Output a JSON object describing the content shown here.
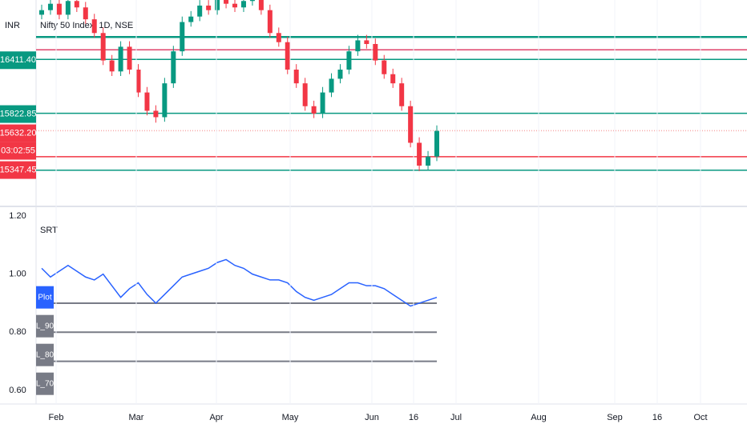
{
  "chart_data": [
    {
      "type": "candlestick",
      "title": "Nifty 50 Index, 1D, NSE",
      "unit": "INR",
      "up_color": "#089981",
      "down_color": "#f23645",
      "open": [
        16900,
        16950,
        17020,
        16900,
        17050,
        16980,
        16850,
        16700,
        16400,
        16280,
        16550,
        16300,
        16050,
        15850,
        15780,
        16150,
        16500,
        16820,
        16880,
        17000,
        16950,
        17080,
        17020,
        16980,
        17050,
        17100,
        16950,
        16700,
        16600,
        16300,
        16150,
        15900,
        15820,
        16050,
        16200,
        16300,
        16500,
        16620,
        16580,
        16400,
        16250,
        16150,
        15900,
        15500,
        15250,
        15350
      ],
      "high": [
        17010,
        17080,
        17080,
        17110,
        17110,
        17040,
        16910,
        16760,
        16460,
        16610,
        16610,
        16360,
        16110,
        15910,
        16210,
        16560,
        16880,
        16940,
        17060,
        17060,
        17140,
        17140,
        17080,
        17110,
        17160,
        17160,
        17010,
        16760,
        16660,
        16360,
        16210,
        15960,
        16110,
        16260,
        16360,
        16560,
        16680,
        16680,
        16640,
        16460,
        16310,
        16210,
        15960,
        15560,
        15410,
        15690
      ],
      "low": [
        16850,
        16900,
        16850,
        16850,
        16930,
        16800,
        16650,
        16350,
        16230,
        16230,
        16250,
        16000,
        15800,
        15720,
        15730,
        16100,
        16450,
        16770,
        16830,
        16900,
        16900,
        16970,
        16930,
        16930,
        17000,
        16900,
        16650,
        16550,
        16250,
        16100,
        15850,
        15770,
        15770,
        16000,
        16150,
        16250,
        16450,
        16530,
        16350,
        16200,
        16100,
        15850,
        15450,
        15190,
        15200,
        15300
      ],
      "close": [
        16950,
        17020,
        16900,
        17050,
        16980,
        16850,
        16700,
        16400,
        16280,
        16550,
        16300,
        16050,
        15850,
        15780,
        16150,
        16500,
        16820,
        16880,
        17000,
        16950,
        17080,
        17020,
        16980,
        17050,
        17100,
        16950,
        16700,
        16600,
        16300,
        16150,
        15900,
        15820,
        16050,
        16200,
        16300,
        16500,
        16620,
        16580,
        16400,
        16250,
        16150,
        15900,
        15500,
        15250,
        15350,
        15630
      ],
      "ylim": [
        14822,
        17061
      ],
      "levels": [
        {
          "value": 16657,
          "color": "#089981"
        },
        {
          "value": 16517,
          "color": "#e0436b"
        },
        {
          "value": 16411.4,
          "color": "#089981"
        },
        {
          "value": 15822.85,
          "color": "#089981"
        },
        {
          "value": 15632.2,
          "color": "#f7a9a9"
        },
        {
          "value": 15347.45,
          "color": "#f23645"
        },
        {
          "value": 15200,
          "color": "#089981"
        }
      ],
      "price_labels": [
        {
          "value": 16411.4,
          "label": "16411.40",
          "color": "#089981"
        },
        {
          "value": 15822.85,
          "label": "15822.85",
          "color": "#089981"
        },
        {
          "value": 15632.2,
          "label": "15632.20",
          "color": "#f23645"
        },
        {
          "value": 15347.45,
          "label": "15347.45",
          "color": "#f23645"
        }
      ],
      "countdown": "03:02:55"
    },
    {
      "type": "line",
      "title": "SRT",
      "series": [
        {
          "name": "Plot",
          "color": "#2962ff",
          "values": [
            1.02,
            0.99,
            1.01,
            1.03,
            1.01,
            0.99,
            0.98,
            1.0,
            0.96,
            0.92,
            0.95,
            0.97,
            0.93,
            0.9,
            0.93,
            0.96,
            0.99,
            1.0,
            1.01,
            1.02,
            1.04,
            1.05,
            1.03,
            1.02,
            1.0,
            0.99,
            0.98,
            0.98,
            0.97,
            0.94,
            0.92,
            0.91,
            0.92,
            0.93,
            0.95,
            0.97,
            0.97,
            0.96,
            0.96,
            0.95,
            0.93,
            0.91,
            0.89,
            0.9,
            0.91,
            0.92
          ]
        }
      ],
      "levels": [
        {
          "value": 0.9,
          "label": "L_90"
        },
        {
          "value": 0.8,
          "label": "L_80"
        },
        {
          "value": 0.7,
          "label": "L_70"
        }
      ],
      "level_color": "#787b86",
      "ylim": [
        0.553,
        1.222
      ],
      "yticks": [
        {
          "value": 1.2,
          "label": "1.20"
        },
        {
          "value": 1,
          "label": "1.00"
        },
        {
          "value": 0.8,
          "label": "0.80"
        },
        {
          "value": 0.6,
          "label": "0.60"
        }
      ],
      "x_labels": [
        "Feb",
        "Mar",
        "Apr",
        "May",
        "Jun",
        "16",
        "Jul",
        "Aug",
        "Sep",
        "16",
        "Oct"
      ]
    }
  ]
}
